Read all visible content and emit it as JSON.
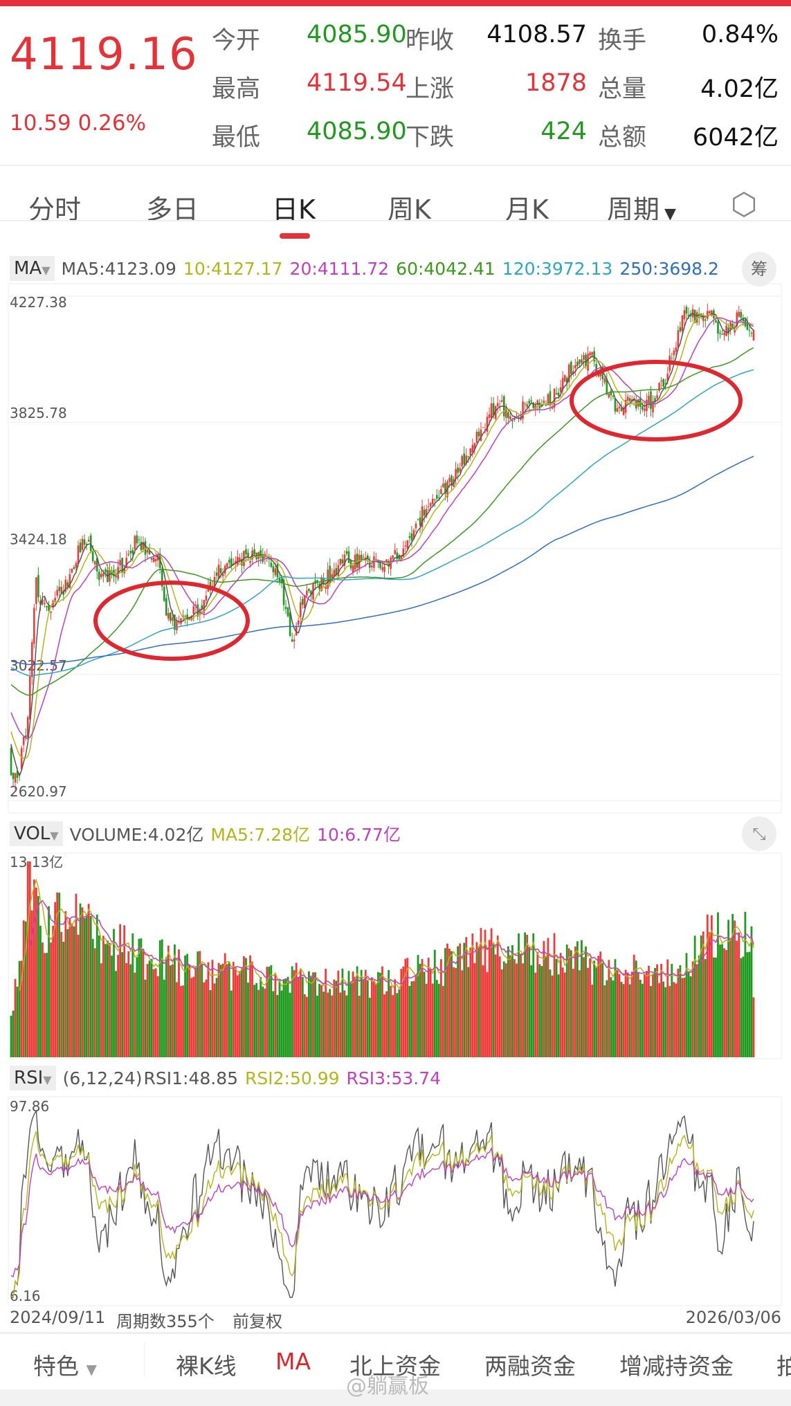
{
  "quote": {
    "price": "4119.16",
    "change": "10.59",
    "change_pct": "0.26%",
    "rows": [
      {
        "l1": "今开",
        "v1": "4085.90",
        "c1": "g",
        "l2": "昨收",
        "v2": "4108.57",
        "c2": "k",
        "l3": "换手",
        "v3": "0.84%"
      },
      {
        "l1": "最高",
        "v1": "4119.54",
        "c1": "r",
        "l2": "上涨",
        "v2": "1878",
        "c2": "r",
        "l3": "总量",
        "v3": "4.02亿"
      },
      {
        "l1": "最低",
        "v1": "4085.90",
        "c1": "g",
        "l2": "下跌",
        "v2": "424",
        "c2": "g",
        "l3": "总额",
        "v3": "6042亿"
      }
    ]
  },
  "tabs": [
    "分时",
    "多日",
    "日K",
    "周K",
    "月K",
    "周期"
  ],
  "active_tab": "日K",
  "ma_header": {
    "btn": "MA",
    "ma5": "MA5:4123.09",
    "ma10": "10:4127.17",
    "ma20": "20:4111.72",
    "ma60": "60:4042.41",
    "ma120": "120:3972.13",
    "ma250": "250:3698.2",
    "chip_btn": "筹"
  },
  "vol_header": {
    "btn": "VOL",
    "volume": "VOLUME:4.02亿",
    "ma5": "MA5:7.28亿",
    "ma10": "10:6.77亿"
  },
  "rsi_header": {
    "btn": "RSI",
    "params": "(6,12,24)",
    "rsi1": "RSI1:48.85",
    "rsi2": "RSI2:50.99",
    "rsi3": "RSI3:53.74"
  },
  "colors": {
    "up": "#f03a3a",
    "down": "#1f9a1f",
    "ma5": "#555555",
    "ma10": "#b5b51a",
    "ma20": "#c03fc0",
    "ma60": "#3a9a1a",
    "ma120": "#2aa6c8",
    "ma250": "#2f6fc0",
    "circle": "#e0262e"
  },
  "chart_data": [
    {
      "type": "candlestick",
      "title": "日K",
      "period_count": 355,
      "ylim": [
        2620.97,
        4227.38
      ],
      "y_ticks": [
        "4227.38",
        "3825.78",
        "3424.18",
        "3022.57",
        "2620.97"
      ],
      "close_keypoints": [
        [
          0,
          2715
        ],
        [
          3,
          2687
        ],
        [
          8,
          2886
        ],
        [
          12,
          3314
        ],
        [
          16,
          3229
        ],
        [
          25,
          3286
        ],
        [
          35,
          3457
        ],
        [
          42,
          3343
        ],
        [
          50,
          3343
        ],
        [
          59,
          3443
        ],
        [
          70,
          3386
        ],
        [
          74,
          3200
        ],
        [
          80,
          3172
        ],
        [
          89,
          3229
        ],
        [
          98,
          3357
        ],
        [
          119,
          3414
        ],
        [
          128,
          3343
        ],
        [
          134,
          3115
        ],
        [
          138,
          3257
        ],
        [
          149,
          3314
        ],
        [
          158,
          3386
        ],
        [
          175,
          3371
        ],
        [
          184,
          3400
        ],
        [
          197,
          3542
        ],
        [
          209,
          3628
        ],
        [
          222,
          3771
        ],
        [
          231,
          3885
        ],
        [
          239,
          3856
        ],
        [
          252,
          3885
        ],
        [
          261,
          3913
        ],
        [
          269,
          4028
        ],
        [
          278,
          4028
        ],
        [
          286,
          3885
        ],
        [
          304,
          3885
        ],
        [
          312,
          3970
        ],
        [
          321,
          4170
        ],
        [
          334,
          4156
        ],
        [
          338,
          4085
        ],
        [
          347,
          4156
        ],
        [
          354,
          4119
        ]
      ],
      "ma_periods": [
        5,
        10,
        20,
        60,
        120,
        250
      ]
    },
    {
      "type": "bar",
      "title": "VOL",
      "unit": "亿",
      "ylim": [
        0,
        13.13
      ],
      "y_max_label": "13.13亿",
      "volume_keypoints": [
        [
          0,
          3
        ],
        [
          6,
          9
        ],
        [
          8,
          13.13
        ],
        [
          14,
          9
        ],
        [
          30,
          10
        ],
        [
          45,
          8
        ],
        [
          60,
          7
        ],
        [
          90,
          6
        ],
        [
          130,
          5.5
        ],
        [
          160,
          5
        ],
        [
          200,
          6
        ],
        [
          225,
          7.5
        ],
        [
          260,
          7
        ],
        [
          290,
          6
        ],
        [
          310,
          5.5
        ],
        [
          322,
          6.5
        ],
        [
          335,
          8.5
        ],
        [
          345,
          8
        ],
        [
          353,
          8.5
        ],
        [
          354,
          4.02
        ]
      ]
    },
    {
      "type": "line",
      "title": "RSI",
      "ylim": [
        6.16,
        97.86
      ],
      "y_ticks": [
        "97.86",
        "6.16"
      ],
      "periods": [
        6,
        12,
        24
      ]
    }
  ],
  "footer": {
    "start_date": "2024/09/11",
    "count": "周期数355个",
    "adjust": "前复权",
    "end_date": "2026/03/06"
  },
  "bottom_tabs": {
    "feature": "特色",
    "items": [
      "裸K线",
      "MA",
      "北上资金",
      "两融资金",
      "增减持资金",
      "拍"
    ],
    "active": "MA"
  },
  "watermark": "@躺赢板"
}
